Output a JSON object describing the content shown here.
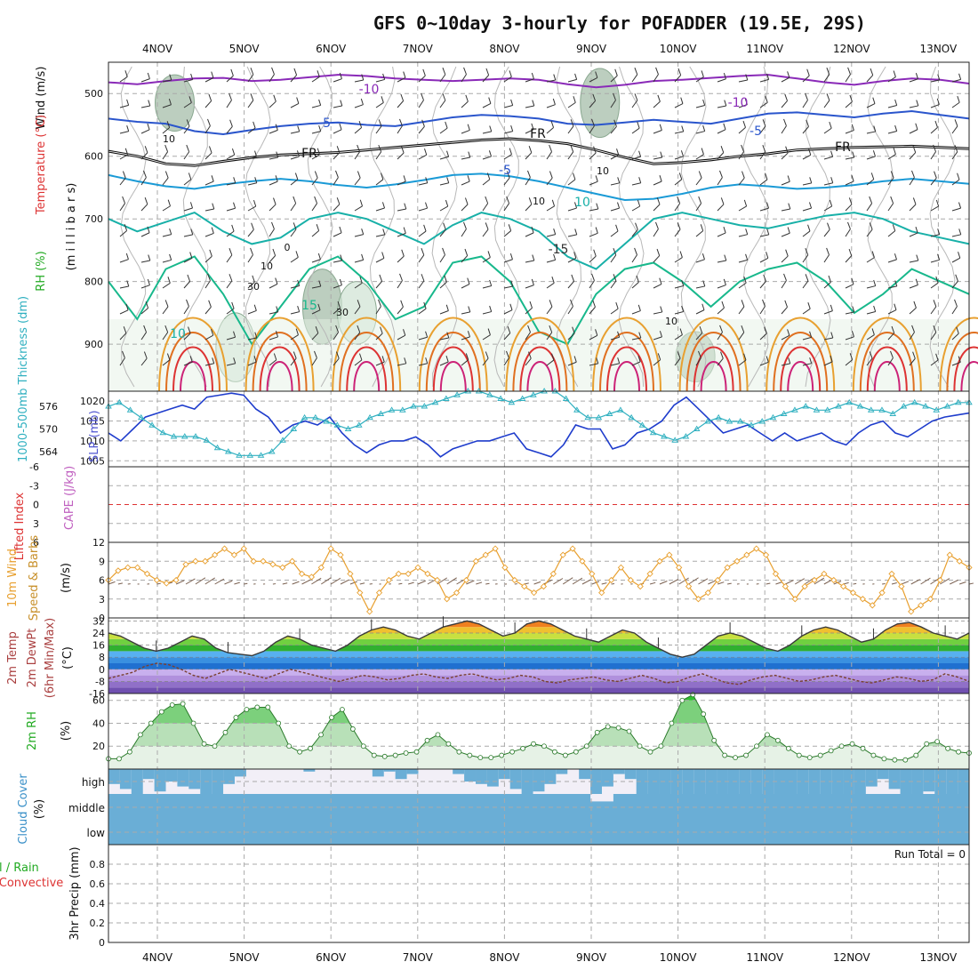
{
  "title": "GFS 0~10day 3-hourly for POFADDER (19.5E, 29S)",
  "days": [
    "4NOV",
    "5NOV",
    "6NOV",
    "7NOV",
    "8NOV",
    "9NOV",
    "10NOV",
    "11NOV",
    "12NOV",
    "13NOV"
  ],
  "colors": {
    "temp_line": "#1a8aa0",
    "sfc_temp": "#3a3a3a",
    "rh": "#22aa22",
    "wind": "#e8a030",
    "slp": "#1e3ccc",
    "thick": "#30b0c0",
    "cloud": "#6aaed6",
    "cloud_gap": "#f2eff7",
    "lifted": "#dd3333",
    "grid": "#aaaaaa"
  },
  "chart_data": [
    {
      "type": "contour",
      "panel": "upper-air",
      "ylabel_main": "(m i l l i b a r s)",
      "ylabel_parts": [
        "Wind (m/s)",
        "Temperature (°C)",
        "RH (%)"
      ],
      "y_ticks": [
        "500",
        "600",
        "700",
        "800",
        "900"
      ],
      "ylim": [
        450,
        975
      ],
      "contour_labels": [
        "-10",
        "-10",
        "-5",
        "-5",
        "FR",
        "FR",
        "FR",
        "-5",
        "10",
        "10",
        "-15",
        "15",
        "10",
        "10",
        "0",
        "10",
        "30",
        "10",
        "30",
        "10"
      ],
      "isotherms": [
        {
          "name": "-10",
          "level": [
            482,
            485,
            480,
            476,
            475,
            480,
            478,
            474,
            470,
            472,
            476,
            478,
            480,
            478,
            476,
            478,
            485,
            490,
            486,
            480,
            478,
            475,
            472,
            470,
            476,
            482,
            486,
            480,
            476,
            478,
            484
          ]
        },
        {
          "name": "-5",
          "level": [
            540,
            545,
            548,
            560,
            565,
            558,
            552,
            548,
            546,
            550,
            552,
            545,
            538,
            534,
            536,
            540,
            548,
            550,
            546,
            542,
            545,
            548,
            540,
            532,
            530,
            534,
            538,
            532,
            528,
            534,
            540
          ]
        },
        {
          "name": "FR",
          "level": [
            592,
            600,
            612,
            615,
            608,
            602,
            598,
            596,
            594,
            590,
            586,
            582,
            578,
            574,
            572,
            575,
            580,
            590,
            602,
            612,
            610,
            606,
            600,
            596,
            590,
            588,
            586,
            585,
            584,
            586,
            588
          ]
        },
        {
          "name": "5",
          "level": [
            630,
            640,
            648,
            652,
            645,
            640,
            636,
            640,
            646,
            650,
            645,
            638,
            630,
            628,
            632,
            640,
            650,
            660,
            670,
            668,
            660,
            650,
            645,
            648,
            652,
            650,
            646,
            640,
            636,
            640,
            644
          ]
        },
        {
          "name": "10",
          "level": [
            700,
            720,
            705,
            690,
            720,
            740,
            730,
            700,
            690,
            700,
            720,
            740,
            710,
            690,
            700,
            720,
            760,
            780,
            740,
            700,
            690,
            700,
            710,
            715,
            705,
            695,
            690,
            700,
            720,
            730,
            740
          ]
        },
        {
          "name": "15",
          "level": [
            800,
            860,
            780,
            760,
            820,
            900,
            840,
            780,
            760,
            800,
            860,
            840,
            770,
            760,
            800,
            880,
            900,
            820,
            780,
            770,
            800,
            840,
            800,
            780,
            770,
            800,
            850,
            820,
            780,
            800,
            820
          ]
        }
      ],
      "rh_patches": [
        {
          "day": 0.2,
          "p": [
            470,
            560
          ],
          "level": "high"
        },
        {
          "day": 1.9,
          "p": [
            780,
            900
          ],
          "level": "high"
        },
        {
          "day": 5.1,
          "p": [
            460,
            570
          ],
          "level": "high"
        },
        {
          "day": 6.2,
          "p": [
            880,
            960
          ],
          "level": "high"
        },
        {
          "day": 0.9,
          "p": [
            850,
            960
          ],
          "level": "mid"
        },
        {
          "day": 2.3,
          "p": [
            800,
            900
          ],
          "level": "mid"
        }
      ]
    },
    {
      "type": "line",
      "panel": "slp-thickness",
      "ylabel_left": "1000-500mb Thickness (dm)",
      "ylabel_right": "SLP (mb)",
      "left_ticks": [
        "576",
        "570",
        "564"
      ],
      "right_ticks": [
        "1020",
        "1015",
        "1010",
        "1005"
      ],
      "series": [
        {
          "name": "SLP (mb)",
          "values": [
            1012,
            1010,
            1013,
            1016,
            1017,
            1018,
            1019,
            1018,
            1021,
            1021.5,
            1022,
            1021.5,
            1018,
            1016,
            1012,
            1014,
            1015,
            1014,
            1016,
            1012,
            1009,
            1007,
            1009,
            1010,
            1010,
            1011,
            1009,
            1006,
            1008,
            1009,
            1010,
            1010,
            1011,
            1012,
            1008,
            1007,
            1006,
            1009,
            1014,
            1013,
            1013,
            1008,
            1009,
            1012,
            1013,
            1015,
            1019,
            1021,
            1018,
            1015,
            1012,
            1013,
            1014,
            1012,
            1010,
            1012,
            1010,
            1011,
            1012,
            1010,
            1009,
            1012,
            1014,
            1015,
            1012,
            1011,
            1013,
            1015,
            1016,
            1016.5,
            1017
          ]
        },
        {
          "name": "1000-500mb Thickness (dm)",
          "values": [
            576,
            577,
            575,
            573,
            571,
            569,
            568,
            568,
            568,
            567,
            565,
            564,
            563,
            563,
            563,
            564,
            567,
            570,
            573,
            573,
            572,
            571,
            570,
            571,
            573,
            574,
            575,
            575,
            576,
            576,
            577,
            578,
            579,
            580,
            580,
            579,
            578,
            577,
            578,
            579,
            580,
            580,
            578,
            575,
            573,
            573,
            574,
            575,
            573,
            571,
            569,
            568,
            567,
            568,
            570,
            572,
            573,
            572,
            572,
            571,
            572,
            573,
            574,
            575,
            576,
            575,
            575,
            576,
            577,
            576,
            575,
            575,
            574,
            576,
            577,
            576,
            575,
            576,
            577,
            577
          ]
        }
      ]
    },
    {
      "type": "line",
      "panel": "lifted-index",
      "ylabel_left": "Lifted Index",
      "ylabel_right": "CAPE (J/kg)",
      "left_ticks": [
        "-6",
        "-3",
        "0",
        "3",
        "6"
      ],
      "ylim": [
        -6,
        6
      ],
      "series": [
        {
          "name": "Lifted Index",
          "values": []
        }
      ]
    },
    {
      "type": "line",
      "panel": "10m-wind",
      "ylabel_left": "10m Wind",
      "ylabel_mid": "Speed & Barbs",
      "ylabel_unit": "(m/s)",
      "y_ticks": [
        "12",
        "9",
        "6",
        "3",
        "0"
      ],
      "ylim": [
        0,
        12
      ],
      "series": [
        {
          "name": "Speed",
          "values": [
            6,
            7.5,
            8,
            8,
            7,
            6,
            5.5,
            6,
            8.5,
            9,
            9,
            10,
            11,
            10,
            11,
            9,
            9,
            8.5,
            8,
            9,
            7,
            6.5,
            8,
            11,
            10,
            7,
            4,
            1,
            4,
            6,
            7,
            7,
            8,
            7,
            6,
            3,
            4,
            6,
            9,
            10,
            11,
            8,
            6,
            5,
            4,
            5,
            7,
            10,
            11,
            9,
            7,
            4,
            6,
            8,
            6,
            5,
            7,
            9,
            10,
            8,
            5,
            3,
            4,
            6,
            8,
            9,
            10,
            11,
            10,
            7,
            5,
            3,
            5,
            6,
            7,
            6,
            5,
            4,
            3,
            2,
            4,
            7,
            5,
            1,
            2,
            3,
            6,
            10,
            9,
            8
          ]
        }
      ]
    },
    {
      "type": "area",
      "panel": "2m-temp",
      "ylabel_left": "2m Temp",
      "ylabel_mid": "2m DewPt",
      "ylabel_note": "(6hr Min/Max)",
      "ylabel_unit": "(°C)",
      "y_ticks": [
        "32",
        "24",
        "16",
        "8",
        "0",
        "-8",
        "-16"
      ],
      "ylim": [
        -16,
        34
      ],
      "series": [
        {
          "name": "2m Temp",
          "values": [
            24,
            22,
            18,
            14,
            12,
            14,
            18,
            22,
            20,
            14,
            11,
            10,
            9,
            12,
            18,
            22,
            20,
            16,
            14,
            12,
            16,
            22,
            26,
            28,
            26,
            22,
            20,
            24,
            28,
            30,
            32,
            30,
            26,
            22,
            24,
            30,
            32,
            30,
            26,
            22,
            20,
            18,
            22,
            26,
            24,
            18,
            14,
            10,
            8,
            10,
            16,
            22,
            24,
            22,
            18,
            14,
            12,
            16,
            22,
            26,
            28,
            26,
            22,
            18,
            20,
            26,
            30,
            31,
            28,
            24,
            22,
            20,
            24
          ]
        },
        {
          "name": "2m DewPt",
          "values": [
            -6,
            -4,
            -2,
            2,
            4,
            3,
            0,
            -4,
            -6,
            -3,
            0,
            -2,
            -4,
            -6,
            -3,
            0,
            -2,
            -4,
            -6,
            -8,
            -6,
            -4,
            -5,
            -7,
            -6,
            -4,
            -3,
            -5,
            -6,
            -4,
            -3,
            -5,
            -7,
            -6,
            -4,
            -5,
            -8,
            -9,
            -7,
            -6,
            -5,
            -7,
            -8,
            -6,
            -4,
            -6,
            -9,
            -8,
            -5,
            -3,
            -6,
            -9,
            -10,
            -7,
            -5,
            -4,
            -6,
            -8,
            -7,
            -5,
            -4,
            -6,
            -8,
            -9,
            -7,
            -5,
            -6,
            -8,
            -7,
            -3,
            -5,
            -8
          ]
        }
      ]
    },
    {
      "type": "area",
      "panel": "2m-rh",
      "ylabel_left": "2m RH",
      "ylabel_unit": "(%)",
      "y_ticks": [
        "60",
        "40",
        "20"
      ],
      "ylim": [
        0,
        66
      ],
      "series": [
        {
          "name": "2m RH",
          "values": [
            9,
            9,
            15,
            30,
            40,
            50,
            56,
            57,
            40,
            22,
            20,
            32,
            45,
            52,
            54,
            54,
            40,
            20,
            15,
            18,
            30,
            45,
            52,
            35,
            20,
            12,
            11,
            12,
            14,
            15,
            25,
            30,
            22,
            15,
            12,
            10,
            10,
            12,
            15,
            18,
            22,
            20,
            15,
            12,
            15,
            20,
            32,
            37,
            36,
            33,
            20,
            15,
            20,
            40,
            60,
            65,
            48,
            25,
            12,
            10,
            12,
            20,
            30,
            25,
            18,
            12,
            10,
            12,
            16,
            20,
            22,
            18,
            12,
            9,
            8,
            8,
            12,
            22,
            24,
            18,
            15,
            14
          ]
        }
      ]
    },
    {
      "type": "bar",
      "panel": "cloud-cover",
      "ylabel_left": "Cloud Cover",
      "ylabel_unit": "(%)",
      "y_ticks": [
        "high",
        "middle",
        "low"
      ],
      "series": [
        {
          "name": "high",
          "values": [
            60,
            80,
            100,
            40,
            90,
            50,
            70,
            80,
            100,
            100,
            60,
            30,
            0,
            0,
            0,
            0,
            0,
            10,
            0,
            0,
            0,
            0,
            0,
            30,
            10,
            40,
            20,
            0,
            0,
            0,
            20,
            50,
            60,
            70,
            40,
            80,
            100,
            90,
            60,
            20,
            0,
            40,
            100,
            70,
            20,
            40,
            100,
            100,
            100,
            100,
            100,
            100,
            100,
            100,
            100,
            100,
            100,
            100,
            100,
            100,
            100,
            100,
            100,
            100,
            100,
            100,
            70,
            40,
            80,
            100,
            100,
            90,
            100,
            100,
            100
          ]
        },
        {
          "name": "middle",
          "values": [
            0,
            0,
            0,
            0,
            0,
            0,
            0,
            0,
            0,
            0,
            0,
            0,
            0,
            0,
            0,
            0,
            0,
            0,
            0,
            0,
            0,
            0,
            0,
            0,
            0,
            0,
            0,
            0,
            0,
            0,
            0,
            0,
            0,
            0,
            0,
            0,
            0,
            0,
            0,
            0,
            0,
            0,
            30,
            0,
            0,
            0,
            0,
            0,
            0,
            0,
            0,
            0,
            0,
            0,
            0,
            0,
            0,
            0,
            0,
            0,
            0,
            0,
            0,
            0,
            0,
            0,
            0,
            0,
            0,
            0,
            0,
            0,
            0,
            0,
            0
          ]
        }
      ]
    },
    {
      "type": "bar",
      "panel": "precip",
      "ylabel_left": "Total / Rain",
      "ylabel_mid": "Convective",
      "ylabel_unit": "3hr Precip (mm)",
      "y_ticks": [
        "0.8",
        "0.6",
        "0.4",
        "0.2",
        "0"
      ],
      "ylim": [
        0,
        1
      ],
      "run_total": "Run Total = 0",
      "series": [
        {
          "name": "Total / Rain",
          "values": []
        },
        {
          "name": "Convective",
          "values": []
        }
      ]
    }
  ]
}
